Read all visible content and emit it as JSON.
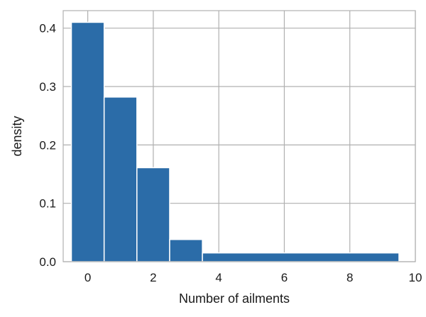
{
  "chart_data": {
    "type": "bar",
    "title": "",
    "xlabel": "Number of ailments",
    "ylabel": "density",
    "xlim": [
      -0.75,
      10
    ],
    "ylim": [
      0,
      0.43
    ],
    "grid": true,
    "bar_color": "#2b6ca8",
    "bins": [
      {
        "x0": -0.5,
        "x1": 0.5,
        "value": 0.41
      },
      {
        "x0": 0.5,
        "x1": 1.5,
        "value": 0.282
      },
      {
        "x0": 1.5,
        "x1": 2.5,
        "value": 0.161
      },
      {
        "x0": 2.5,
        "x1": 3.5,
        "value": 0.038
      },
      {
        "x0": 3.5,
        "x1": 9.5,
        "value": 0.015
      }
    ],
    "xticks": [
      0,
      2,
      4,
      6,
      8,
      10
    ],
    "xtick_labels": [
      "0",
      "2",
      "4",
      "6",
      "8",
      "10"
    ],
    "yticks": [
      0.0,
      0.1,
      0.2,
      0.3,
      0.4
    ],
    "ytick_labels": [
      "0.0",
      "0.1",
      "0.2",
      "0.3",
      "0.4"
    ]
  }
}
